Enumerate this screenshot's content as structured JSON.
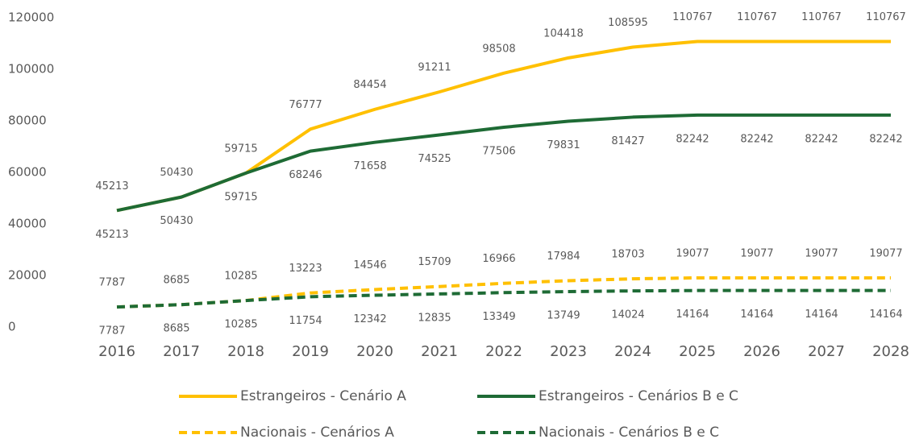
{
  "chart_data": {
    "type": "line",
    "categories": [
      "2016",
      "2017",
      "2018",
      "2019",
      "2020",
      "2021",
      "2022",
      "2023",
      "2024",
      "2025",
      "2026",
      "2027",
      "2028"
    ],
    "series": [
      {
        "name": "Estrangeiros - Cenário A",
        "color": "#FFC000",
        "linestyle": "solid",
        "label_position": "above",
        "values": [
          45213,
          50430,
          59715,
          76777,
          84454,
          91211,
          98508,
          104418,
          108595,
          110767,
          110767,
          110767,
          110767
        ]
      },
      {
        "name": "Estrangeiros - Cenários B e C",
        "color": "#1E6B35",
        "linestyle": "solid",
        "label_position": "below",
        "values": [
          45213,
          50430,
          59715,
          68246,
          71658,
          74525,
          77506,
          79831,
          81427,
          82242,
          82242,
          82242,
          82242
        ]
      },
      {
        "name": "Nacionais - Cenários A",
        "color": "#FFC000",
        "linestyle": "dashed",
        "label_position": "above",
        "values": [
          7787,
          8685,
          10285,
          13223,
          14546,
          15709,
          16966,
          17984,
          18703,
          19077,
          19077,
          19077,
          19077
        ]
      },
      {
        "name": "Nacionais - Cenários B e C",
        "color": "#1E6B35",
        "linestyle": "dashed",
        "label_position": "below",
        "values": [
          7787,
          8685,
          10285,
          11754,
          12342,
          12835,
          13349,
          13749,
          14024,
          14164,
          14164,
          14164,
          14164
        ]
      }
    ],
    "ylim": [
      0,
      120000
    ],
    "yticks": [
      0,
      20000,
      40000,
      60000,
      80000,
      100000,
      120000
    ],
    "grid": false
  }
}
